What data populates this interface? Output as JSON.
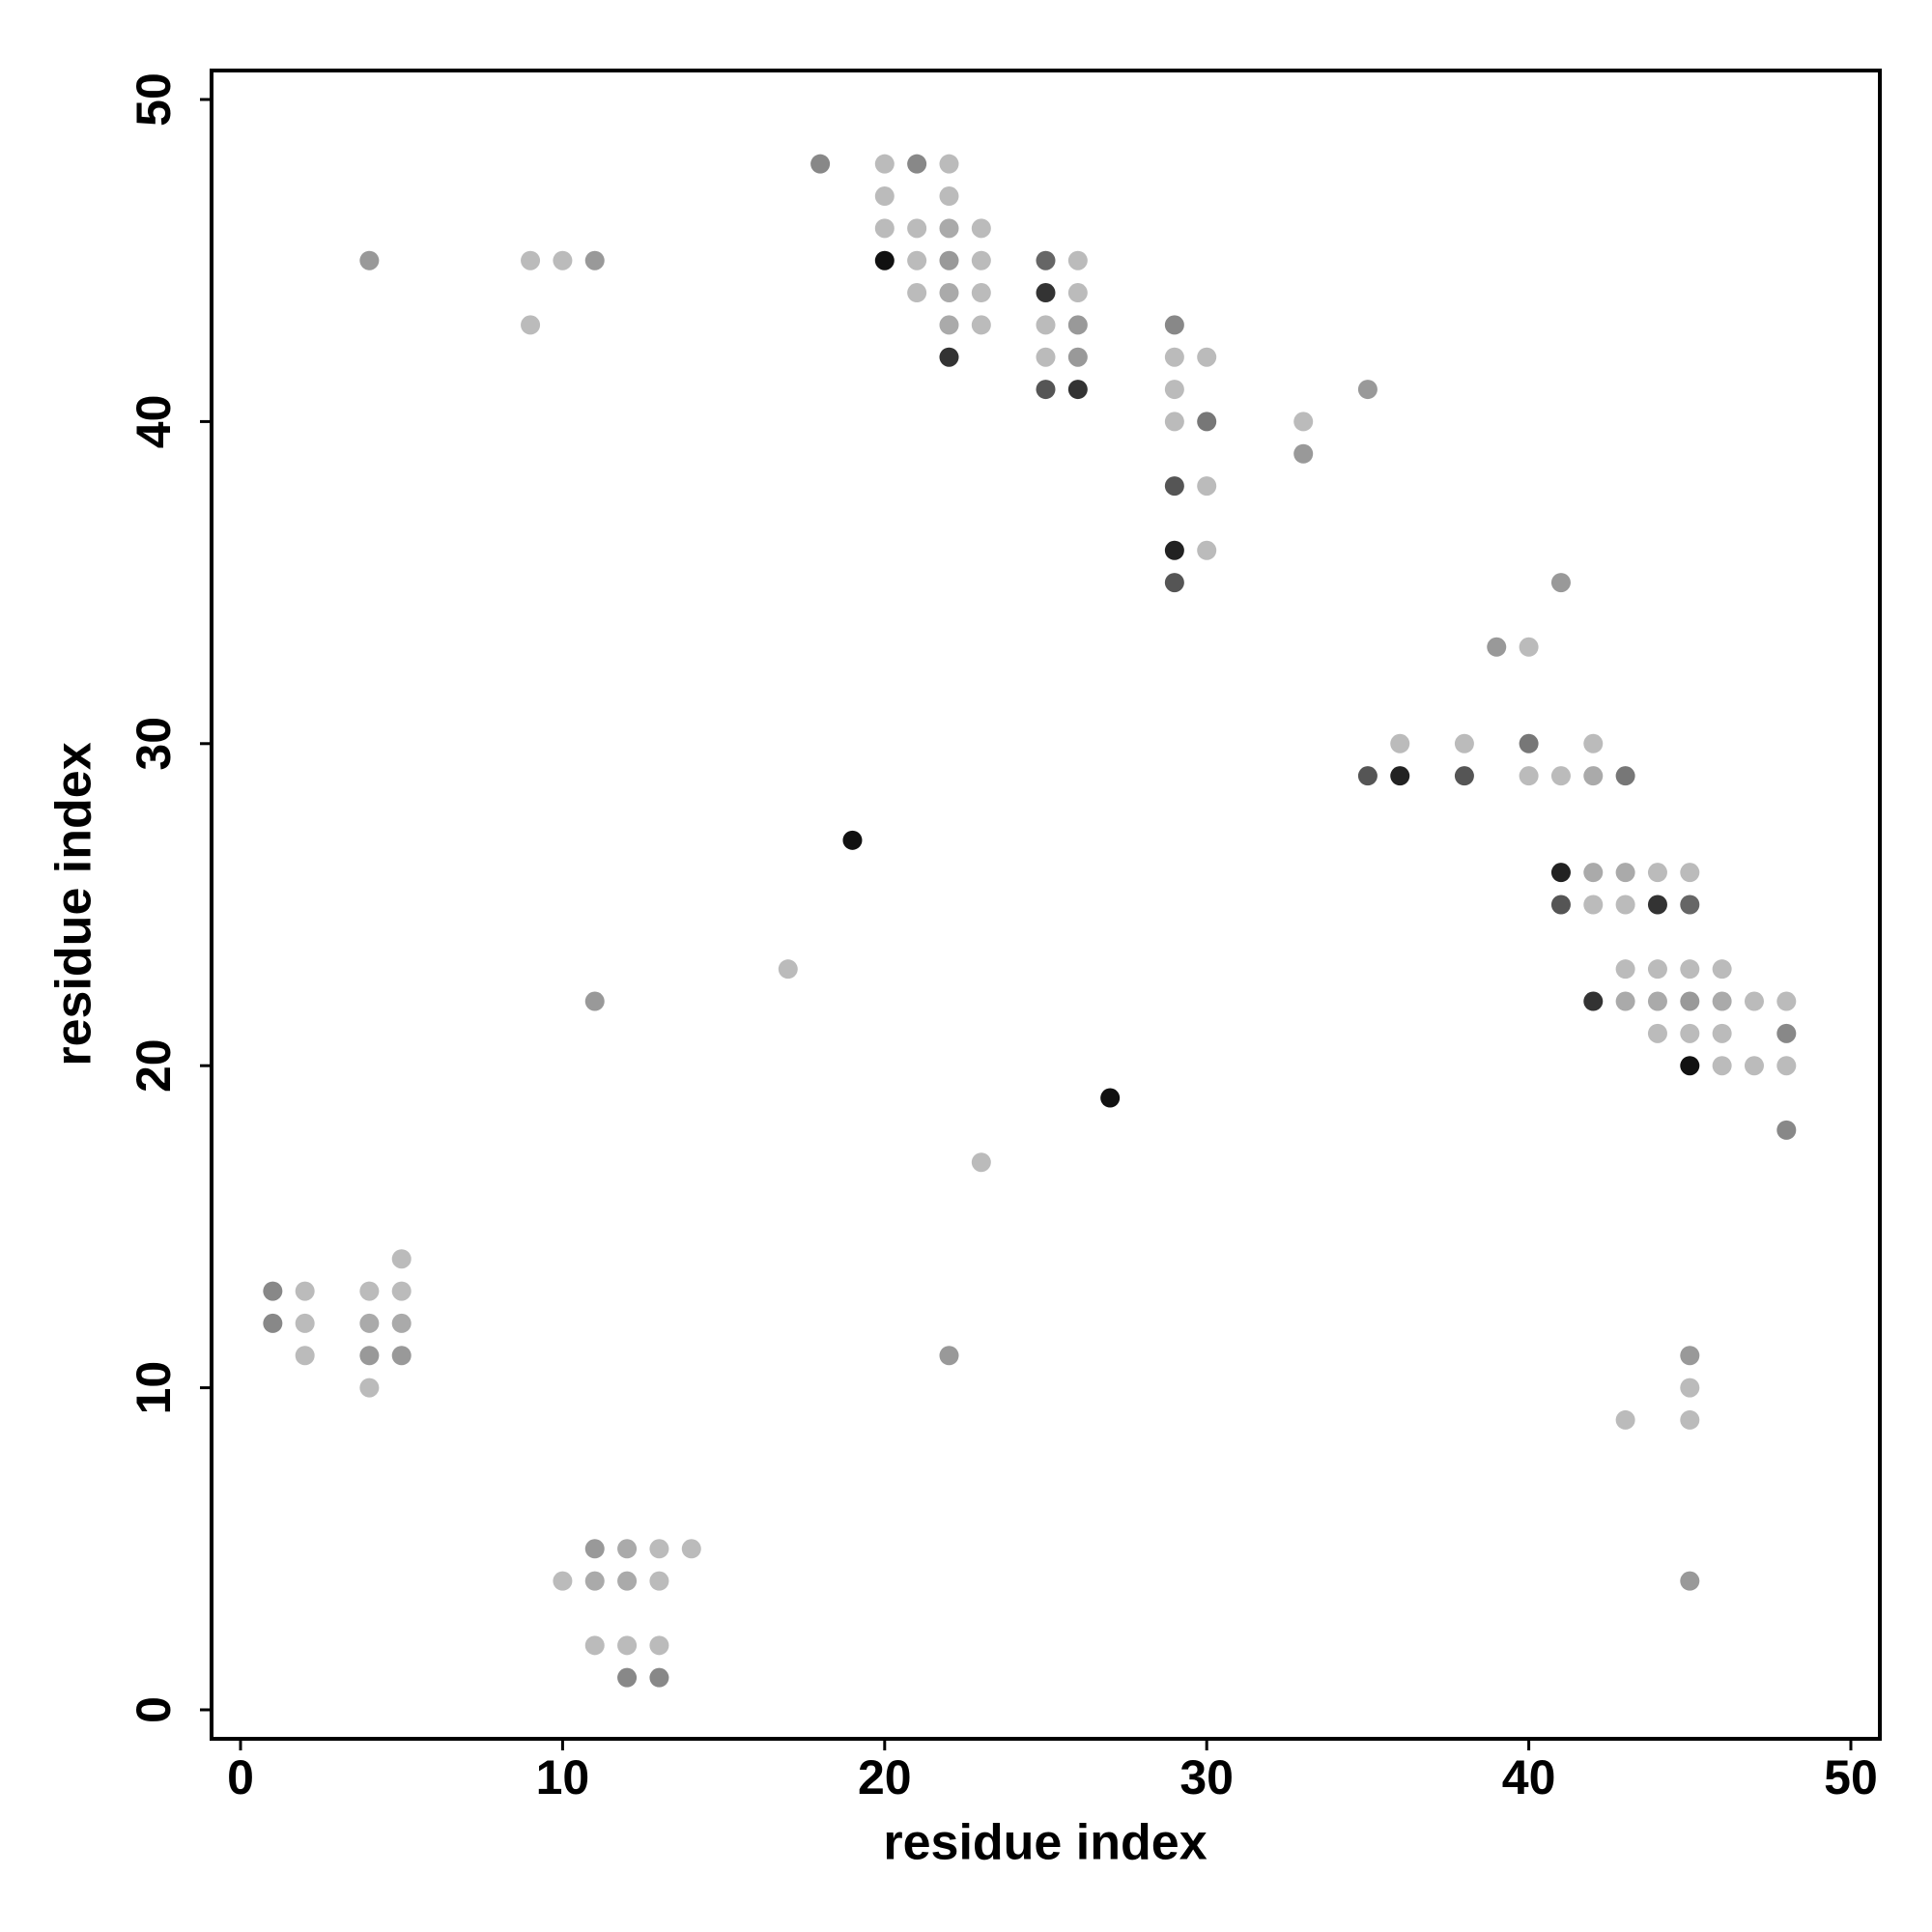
{
  "chart_data": {
    "type": "scatter",
    "x_label": "residue index",
    "y_label": "residue index",
    "xlim": [
      -0.9,
      50.9
    ],
    "ylim": [
      -0.9,
      50.9
    ],
    "xticks": [
      0,
      10,
      20,
      30,
      40,
      50
    ],
    "yticks": [
      0,
      10,
      20,
      30,
      40,
      50
    ],
    "x": [
      18,
      20,
      21,
      22,
      20,
      22,
      20,
      21,
      22,
      23,
      4,
      9,
      10,
      11,
      20,
      21,
      22,
      23,
      25,
      26,
      21,
      22,
      23,
      25,
      26,
      9,
      22,
      23,
      25,
      26,
      29,
      22,
      25,
      26,
      29,
      30,
      25,
      26,
      29,
      35,
      29,
      30,
      33,
      33,
      29,
      30,
      29,
      30,
      29,
      41,
      39,
      40,
      36,
      38,
      40,
      42,
      35,
      36,
      38,
      40,
      41,
      42,
      43,
      19,
      41,
      42,
      43,
      44,
      45,
      41,
      42,
      43,
      44,
      45,
      17,
      43,
      44,
      45,
      46,
      11,
      42,
      43,
      44,
      45,
      46,
      47,
      48,
      44,
      45,
      46,
      48,
      45,
      46,
      47,
      48,
      27,
      48,
      23,
      5,
      1,
      2,
      4,
      5,
      1,
      2,
      4,
      5,
      2,
      4,
      5,
      22,
      45,
      4,
      45,
      43,
      45,
      11,
      12,
      13,
      14,
      10,
      11,
      12,
      13,
      45,
      11,
      12,
      13,
      12,
      13
    ],
    "values": [
      48,
      48,
      48,
      48,
      47,
      47,
      46,
      46,
      46,
      46,
      45,
      45,
      45,
      45,
      45,
      45,
      45,
      45,
      45,
      45,
      44,
      44,
      44,
      44,
      44,
      43,
      43,
      43,
      43,
      43,
      43,
      42,
      42,
      42,
      42,
      42,
      41,
      41,
      41,
      41,
      40,
      40,
      40,
      39,
      38,
      38,
      36,
      36,
      35,
      35,
      33,
      33,
      30,
      30,
      30,
      30,
      29,
      29,
      29,
      29,
      29,
      29,
      29,
      27,
      26,
      26,
      26,
      26,
      26,
      25,
      25,
      25,
      25,
      25,
      23,
      23,
      23,
      23,
      23,
      22,
      22,
      22,
      22,
      22,
      22,
      22,
      22,
      21,
      21,
      21,
      21,
      20,
      20,
      20,
      20,
      19,
      18,
      17,
      14,
      13,
      13,
      13,
      13,
      12,
      12,
      12,
      12,
      11,
      11,
      11,
      11,
      11,
      10,
      10,
      9,
      9,
      5,
      5,
      5,
      5,
      4,
      4,
      4,
      4,
      4,
      2,
      2,
      2,
      1,
      1
    ],
    "colors": [
      "#888",
      "#bbb",
      "#888",
      "#bbb",
      "#bbb",
      "#bbb",
      "#bbb",
      "#bbb",
      "#aaa",
      "#bbb",
      "#999",
      "#bbb",
      "#bbb",
      "#999",
      "#111",
      "#bbb",
      "#999",
      "#bbb",
      "#666",
      "#bbb",
      "#bbb",
      "#aaa",
      "#bbb",
      "#333",
      "#bbb",
      "#bbb",
      "#aaa",
      "#bbb",
      "#bbb",
      "#999",
      "#888",
      "#333",
      "#bbb",
      "#999",
      "#bbb",
      "#bbb",
      "#555",
      "#333",
      "#bbb",
      "#999",
      "#bbb",
      "#777",
      "#bbb",
      "#999",
      "#555",
      "#bbb",
      "#222",
      "#bbb",
      "#555",
      "#999",
      "#999",
      "#bbb",
      "#bbb",
      "#bbb",
      "#777",
      "#bbb",
      "#555",
      "#222",
      "#555",
      "#bbb",
      "#bbb",
      "#aaa",
      "#777",
      "#111",
      "#222",
      "#aaa",
      "#aaa",
      "#bbb",
      "#bbb",
      "#555",
      "#bbb",
      "#bbb",
      "#333",
      "#666",
      "#bbb",
      "#bbb",
      "#bbb",
      "#bbb",
      "#bbb",
      "#999",
      "#333",
      "#aaa",
      "#aaa",
      "#999",
      "#aaa",
      "#bbb",
      "#bbb",
      "#bbb",
      "#bbb",
      "#bbb",
      "#888",
      "#111",
      "#bbb",
      "#bbb",
      "#bbb",
      "#111",
      "#888",
      "#bbb",
      "#bbb",
      "#888",
      "#bbb",
      "#bbb",
      "#bbb",
      "#888",
      "#bbb",
      "#aaa",
      "#aaa",
      "#bbb",
      "#999",
      "#999",
      "#999",
      "#999",
      "#bbb",
      "#bbb",
      "#bbb",
      "#bbb",
      "#999",
      "#aaa",
      "#bbb",
      "#bbb",
      "#bbb",
      "#aaa",
      "#aaa",
      "#bbb",
      "#999",
      "#bbb",
      "#bbb",
      "#bbb",
      "#888",
      "#888"
    ]
  }
}
